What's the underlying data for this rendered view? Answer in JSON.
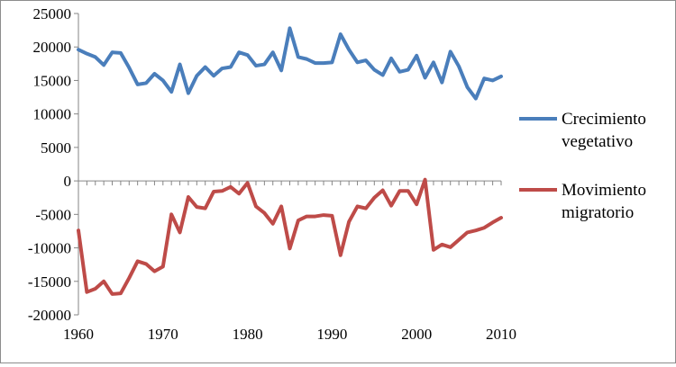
{
  "chart_data": {
    "type": "line",
    "title": "",
    "xlabel": "",
    "ylabel": "",
    "xlim": [
      1960,
      2010
    ],
    "ylim": [
      -20000,
      25000
    ],
    "x_ticks": [
      "1960",
      "1970",
      "1980",
      "1990",
      "2000",
      "2010"
    ],
    "y_ticks": [
      "25000",
      "20000",
      "15000",
      "10000",
      "5000",
      "0",
      "-5000",
      "-10000",
      "-15000",
      "-20000"
    ],
    "grid": "none",
    "legend_position": "right",
    "x": [
      1960,
      1961,
      1962,
      1963,
      1964,
      1965,
      1966,
      1967,
      1968,
      1969,
      1970,
      1971,
      1972,
      1973,
      1974,
      1975,
      1976,
      1977,
      1978,
      1979,
      1980,
      1981,
      1982,
      1983,
      1984,
      1985,
      1986,
      1987,
      1988,
      1989,
      1990,
      1991,
      1992,
      1993,
      1994,
      1995,
      1996,
      1997,
      1998,
      1999,
      2000,
      2001,
      2002,
      2003,
      2004,
      2005,
      2006,
      2007,
      2008,
      2009,
      2010
    ],
    "series": [
      {
        "name_lines": [
          "Crecimiento",
          "vegetativo"
        ],
        "color": "#4a7ebb",
        "values": [
          19600,
          19000,
          18500,
          17300,
          19200,
          19100,
          16900,
          14400,
          14600,
          16000,
          15000,
          13300,
          17400,
          13100,
          15700,
          17000,
          15700,
          16800,
          17000,
          19200,
          18800,
          17200,
          17400,
          19200,
          16500,
          22800,
          18500,
          18200,
          17600,
          17600,
          17700,
          21900,
          19600,
          17700,
          18000,
          16600,
          15800,
          18300,
          16300,
          16600,
          18700,
          15400,
          17700,
          14700,
          19300,
          17100,
          14000,
          12300,
          15300,
          15000,
          15600
        ]
      },
      {
        "name_lines": [
          "Movimiento",
          "migratorio"
        ],
        "color": "#be4b48",
        "values": [
          -7400,
          -16600,
          -16100,
          -15000,
          -16900,
          -16800,
          -14500,
          -12000,
          -12400,
          -13500,
          -12800,
          -5000,
          -7700,
          -2400,
          -3900,
          -4100,
          -1600,
          -1500,
          -900,
          -1900,
          -300,
          -3800,
          -4800,
          -6400,
          -3800,
          -10100,
          -5900,
          -5300,
          -5300,
          -5100,
          -5200,
          -11100,
          -6100,
          -3800,
          -4100,
          -2500,
          -1400,
          -3700,
          -1500,
          -1500,
          -3500,
          200,
          -10300,
          -9500,
          -9900,
          -8800,
          -7700,
          -7400,
          -7000,
          -6200,
          -5500
        ]
      }
    ]
  }
}
